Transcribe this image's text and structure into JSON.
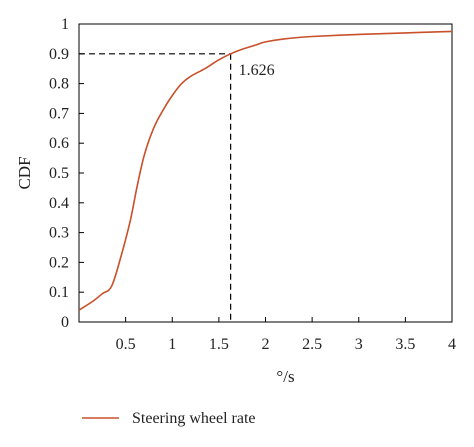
{
  "chart_data": {
    "type": "line",
    "xlabel": "°/s",
    "ylabel": "CDF",
    "xlim": [
      0,
      4
    ],
    "ylim": [
      0,
      1
    ],
    "xticks": [
      0.5,
      1,
      1.5,
      2,
      2.5,
      3,
      3.5,
      4
    ],
    "xtick_labels": [
      "0.5",
      "1",
      "1.5",
      "2",
      "2.5",
      "3",
      "3.5",
      "4"
    ],
    "yticks": [
      0,
      0.1,
      0.2,
      0.3,
      0.4,
      0.5,
      0.6,
      0.7,
      0.8,
      0.9,
      1
    ],
    "ytick_labels": [
      "0",
      "0.1",
      "0.2",
      "0.3",
      "0.4",
      "0.5",
      "0.6",
      "0.7",
      "0.8",
      "0.9",
      "1"
    ],
    "grid": false,
    "legend_position": "bottom-left",
    "series": [
      {
        "name": "Steering wheel rate",
        "color": "#c8502a",
        "x": [
          0.0,
          0.15,
          0.25,
          0.35,
          0.45,
          0.55,
          0.62,
          0.7,
          0.8,
          0.9,
          1.0,
          1.1,
          1.2,
          1.35,
          1.5,
          1.626,
          1.75,
          1.9,
          2.0,
          2.2,
          2.5,
          3.0,
          3.5,
          4.0
        ],
        "y": [
          0.04,
          0.07,
          0.095,
          0.12,
          0.22,
          0.34,
          0.45,
          0.56,
          0.65,
          0.71,
          0.76,
          0.8,
          0.825,
          0.85,
          0.88,
          0.9,
          0.915,
          0.93,
          0.94,
          0.95,
          0.958,
          0.965,
          0.97,
          0.975
        ]
      }
    ],
    "annotations": [
      {
        "x": 1.626,
        "y": 0.9,
        "text": "1.626"
      }
    ]
  }
}
